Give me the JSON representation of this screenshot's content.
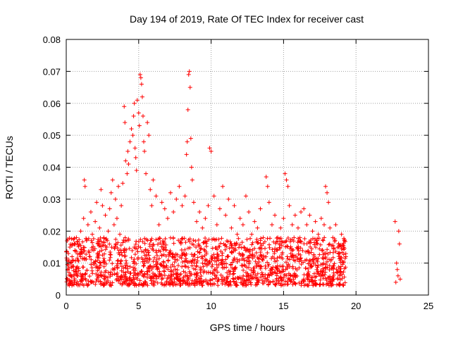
{
  "chart_data": {
    "type": "scatter",
    "title": "Day 194 of 2019, Rate Of TEC Index for receiver cast",
    "xlabel": "GPS time / hours",
    "ylabel": "ROTI / TECUs",
    "xlim": [
      0,
      25
    ],
    "ylim": [
      0,
      0.08
    ],
    "xticks": [
      0,
      5,
      10,
      15,
      20,
      25
    ],
    "yticks": [
      0,
      0.01,
      0.02,
      0.03,
      0.04,
      0.05,
      0.06,
      0.07,
      0.08
    ],
    "xtick_labels": [
      "0",
      "5",
      "10",
      "15",
      "20",
      "25"
    ],
    "ytick_labels": [
      "0",
      "0.01",
      "0.02",
      "0.03",
      "0.04",
      "0.05",
      "0.06",
      "0.07",
      "0.08"
    ],
    "grid": true,
    "marker": "+",
    "color": "#ff0000",
    "series": [
      {
        "name": "ROTI",
        "points": [
          [
            0.05,
            0.011
          ],
          [
            0.1,
            0.008
          ],
          [
            0.15,
            0.013
          ],
          [
            0.2,
            0.007
          ],
          [
            0.25,
            0.015
          ],
          [
            0.3,
            0.01
          ],
          [
            0.35,
            0.006
          ],
          [
            0.4,
            0.012
          ],
          [
            0.5,
            0.009
          ],
          [
            0.6,
            0.014
          ],
          [
            0.7,
            0.018
          ],
          [
            0.8,
            0.011
          ],
          [
            0.9,
            0.016
          ],
          [
            1.0,
            0.02
          ],
          [
            1.1,
            0.013
          ],
          [
            1.2,
            0.024
          ],
          [
            1.25,
            0.036
          ],
          [
            1.3,
            0.034
          ],
          [
            1.4,
            0.017
          ],
          [
            1.5,
            0.022
          ],
          [
            1.6,
            0.012
          ],
          [
            1.7,
            0.026
          ],
          [
            1.8,
            0.019
          ],
          [
            1.9,
            0.014
          ],
          [
            2.0,
            0.023
          ],
          [
            2.1,
            0.029
          ],
          [
            2.2,
            0.016
          ],
          [
            2.3,
            0.021
          ],
          [
            2.4,
            0.033
          ],
          [
            2.5,
            0.028
          ],
          [
            2.6,
            0.018
          ],
          [
            2.7,
            0.025
          ],
          [
            2.8,
            0.015
          ],
          [
            2.9,
            0.02
          ],
          [
            3.0,
            0.027
          ],
          [
            3.1,
            0.032
          ],
          [
            3.2,
            0.036
          ],
          [
            3.3,
            0.022
          ],
          [
            3.4,
            0.03
          ],
          [
            3.5,
            0.024
          ],
          [
            3.6,
            0.034
          ],
          [
            3.7,
            0.019
          ],
          [
            3.8,
            0.028
          ],
          [
            3.9,
            0.035
          ],
          [
            4.0,
            0.059
          ],
          [
            4.05,
            0.054
          ],
          [
            4.1,
            0.042
          ],
          [
            4.2,
            0.038
          ],
          [
            4.25,
            0.045
          ],
          [
            4.3,
            0.041
          ],
          [
            4.4,
            0.048
          ],
          [
            4.5,
            0.052
          ],
          [
            4.6,
            0.05
          ],
          [
            4.65,
            0.056
          ],
          [
            4.7,
            0.06
          ],
          [
            4.75,
            0.046
          ],
          [
            4.8,
            0.043
          ],
          [
            4.85,
            0.039
          ],
          [
            4.9,
            0.061
          ],
          [
            5.0,
            0.057
          ],
          [
            5.05,
            0.053
          ],
          [
            5.1,
            0.069
          ],
          [
            5.15,
            0.068
          ],
          [
            5.2,
            0.066
          ],
          [
            5.25,
            0.062
          ],
          [
            5.3,
            0.056
          ],
          [
            5.35,
            0.048
          ],
          [
            5.4,
            0.045
          ],
          [
            5.5,
            0.038
          ],
          [
            5.6,
            0.054
          ],
          [
            5.7,
            0.05
          ],
          [
            5.8,
            0.033
          ],
          [
            5.9,
            0.028
          ],
          [
            6.0,
            0.036
          ],
          [
            6.2,
            0.031
          ],
          [
            6.4,
            0.022
          ],
          [
            6.6,
            0.029
          ],
          [
            6.8,
            0.027
          ],
          [
            7.0,
            0.024
          ],
          [
            7.2,
            0.032
          ],
          [
            7.4,
            0.026
          ],
          [
            7.6,
            0.03
          ],
          [
            7.8,
            0.034
          ],
          [
            8.0,
            0.028
          ],
          [
            8.2,
            0.031
          ],
          [
            8.3,
            0.044
          ],
          [
            8.35,
            0.048
          ],
          [
            8.4,
            0.058
          ],
          [
            8.45,
            0.069
          ],
          [
            8.5,
            0.07
          ],
          [
            8.55,
            0.065
          ],
          [
            8.6,
            0.049
          ],
          [
            8.65,
            0.04
          ],
          [
            8.7,
            0.036
          ],
          [
            8.8,
            0.029
          ],
          [
            9.0,
            0.023
          ],
          [
            9.2,
            0.026
          ],
          [
            9.4,
            0.021
          ],
          [
            9.6,
            0.024
          ],
          [
            9.8,
            0.028
          ],
          [
            9.9,
            0.046
          ],
          [
            10.0,
            0.045
          ],
          [
            10.2,
            0.031
          ],
          [
            10.4,
            0.022
          ],
          [
            10.6,
            0.027
          ],
          [
            10.8,
            0.034
          ],
          [
            11.0,
            0.025
          ],
          [
            11.2,
            0.03
          ],
          [
            11.4,
            0.021
          ],
          [
            11.6,
            0.028
          ],
          [
            11.8,
            0.019
          ],
          [
            12.0,
            0.024
          ],
          [
            12.2,
            0.022
          ],
          [
            12.4,
            0.031
          ],
          [
            12.6,
            0.026
          ],
          [
            12.8,
            0.019
          ],
          [
            13.0,
            0.023
          ],
          [
            13.2,
            0.021
          ],
          [
            13.4,
            0.027
          ],
          [
            13.6,
            0.018
          ],
          [
            13.8,
            0.037
          ],
          [
            13.9,
            0.034
          ],
          [
            14.0,
            0.029
          ],
          [
            14.2,
            0.022
          ],
          [
            14.4,
            0.025
          ],
          [
            14.6,
            0.018
          ],
          [
            14.8,
            0.021
          ],
          [
            15.0,
            0.024
          ],
          [
            15.1,
            0.038
          ],
          [
            15.2,
            0.036
          ],
          [
            15.3,
            0.034
          ],
          [
            15.4,
            0.028
          ],
          [
            15.6,
            0.022
          ],
          [
            15.8,
            0.025
          ],
          [
            16.0,
            0.021
          ],
          [
            16.2,
            0.026
          ],
          [
            16.4,
            0.027
          ],
          [
            16.6,
            0.022
          ],
          [
            16.8,
            0.025
          ],
          [
            17.0,
            0.02
          ],
          [
            17.2,
            0.023
          ],
          [
            17.4,
            0.019
          ],
          [
            17.6,
            0.024
          ],
          [
            17.8,
            0.022
          ],
          [
            17.9,
            0.034
          ],
          [
            18.0,
            0.032
          ],
          [
            18.1,
            0.029
          ],
          [
            18.2,
            0.021
          ],
          [
            18.4,
            0.018
          ],
          [
            18.6,
            0.022
          ],
          [
            18.8,
            0.016
          ],
          [
            19.0,
            0.019
          ],
          [
            19.2,
            0.017
          ],
          [
            19.3,
            0.012
          ],
          [
            22.7,
            0.023
          ],
          [
            22.8,
            0.01
          ],
          [
            22.85,
            0.008
          ],
          [
            22.9,
            0.006
          ],
          [
            22.95,
            0.02
          ],
          [
            23.0,
            0.016
          ],
          [
            23.05,
            0.005
          ],
          [
            22.75,
            0.004
          ]
        ]
      }
    ],
    "band": {
      "x_start": 0,
      "x_end": 19.3,
      "y_min": 0.003,
      "y_max": 0.018,
      "n_points": 1600,
      "seed": 194
    }
  }
}
